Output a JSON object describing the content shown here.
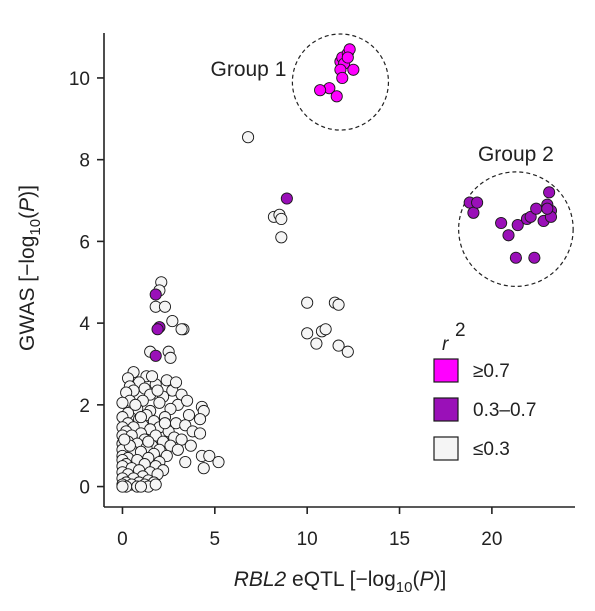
{
  "chart_data": {
    "type": "scatter",
    "title": "",
    "xlabel": {
      "italic": "RBL2",
      "rest": " eQTL [−log",
      "sub": "10",
      "tail": "(P)]"
    },
    "ylabel": {
      "main": "GWAS  [−log",
      "sub": "10",
      "tail": "(P)]"
    },
    "xlim": [
      -1,
      24.5
    ],
    "ylim": [
      -0.5,
      11.1
    ],
    "xticks": [
      0,
      5,
      10,
      15,
      20
    ],
    "xtick_labels": [
      "0",
      "5",
      "10",
      "15",
      "20"
    ],
    "yticks": [
      0,
      2,
      4,
      6,
      8,
      10
    ],
    "ytick_labels": [
      "0",
      "2",
      "4",
      "6",
      "8",
      "10"
    ],
    "grid": false,
    "legend": {
      "placement": "lower-right",
      "title": "r",
      "title_sup": "2",
      "entries": [
        {
          "label": "≥0.7",
          "color": "#ff00ff"
        },
        {
          "label": "0.3–0.7",
          "color": "#9a10b8"
        },
        {
          "label": "≤0.3",
          "color": "#f5f5f5"
        }
      ]
    },
    "annotations": [
      {
        "label": "Group 1",
        "center": [
          11.8,
          9.9
        ],
        "radius_x_units": 2.6
      },
      {
        "label": "Group 2",
        "center": [
          21.3,
          6.3
        ],
        "radius_x_units": 3.1
      }
    ],
    "series": [
      {
        "name": "≥0.7",
        "color": "#ff00ff",
        "points": [
          [
            11.8,
            10.4
          ],
          [
            11.9,
            10.5
          ],
          [
            12.0,
            10.35
          ],
          [
            12.2,
            10.6
          ],
          [
            12.3,
            10.7
          ],
          [
            11.8,
            10.2
          ],
          [
            12.5,
            10.2
          ],
          [
            11.9,
            10.0
          ],
          [
            11.2,
            9.75
          ],
          [
            10.7,
            9.7
          ],
          [
            11.6,
            9.55
          ],
          [
            12.2,
            10.5
          ]
        ]
      },
      {
        "name": "0.3–0.7",
        "color": "#9a10b8",
        "points": [
          [
            8.9,
            7.05
          ],
          [
            1.8,
            4.7
          ],
          [
            2.0,
            3.9
          ],
          [
            1.9,
            3.85
          ],
          [
            1.8,
            3.2
          ],
          [
            18.8,
            6.95
          ],
          [
            19.0,
            6.7
          ],
          [
            19.2,
            6.95
          ],
          [
            20.5,
            6.45
          ],
          [
            20.9,
            6.15
          ],
          [
            21.4,
            6.4
          ],
          [
            21.9,
            6.55
          ],
          [
            22.1,
            6.6
          ],
          [
            22.4,
            6.8
          ],
          [
            22.8,
            6.5
          ],
          [
            23.0,
            6.9
          ],
          [
            23.1,
            7.2
          ],
          [
            23.2,
            6.75
          ],
          [
            23.2,
            6.6
          ],
          [
            23.0,
            6.8
          ],
          [
            21.3,
            5.6
          ],
          [
            22.3,
            5.6
          ]
        ]
      },
      {
        "name": "≤0.3",
        "color": "#f5f5f5",
        "points": [
          [
            6.8,
            8.55
          ],
          [
            8.2,
            6.6
          ],
          [
            8.5,
            6.65
          ],
          [
            8.6,
            6.55
          ],
          [
            8.6,
            6.1
          ],
          [
            10.0,
            4.5
          ],
          [
            10.0,
            3.75
          ],
          [
            10.5,
            3.5
          ],
          [
            10.8,
            3.8
          ],
          [
            11.0,
            3.85
          ],
          [
            11.5,
            4.5
          ],
          [
            11.7,
            4.45
          ],
          [
            11.7,
            3.45
          ],
          [
            12.2,
            3.3
          ],
          [
            2.1,
            5.0
          ],
          [
            2.0,
            4.8
          ],
          [
            1.8,
            4.4
          ],
          [
            2.3,
            4.4
          ],
          [
            2.7,
            4.05
          ],
          [
            3.3,
            3.85
          ],
          [
            3.2,
            3.85
          ],
          [
            1.5,
            3.3
          ],
          [
            2.5,
            3.3
          ],
          [
            2.6,
            3.15
          ],
          [
            0.6,
            2.8
          ],
          [
            1.3,
            2.7
          ],
          [
            0.3,
            2.65
          ],
          [
            2.4,
            2.6
          ],
          [
            0.9,
            2.55
          ],
          [
            0.4,
            2.45
          ],
          [
            1.2,
            2.4
          ],
          [
            1.8,
            2.5
          ],
          [
            2.7,
            2.35
          ],
          [
            0.6,
            2.35
          ],
          [
            1.5,
            2.25
          ],
          [
            0.2,
            2.3
          ],
          [
            3.2,
            2.25
          ],
          [
            2.2,
            2.2
          ],
          [
            0.4,
            2.1
          ],
          [
            1.1,
            2.1
          ],
          [
            2.0,
            2.05
          ],
          [
            0.0,
            2.05
          ],
          [
            3.0,
            2.0
          ],
          [
            4.3,
            1.95
          ],
          [
            4.4,
            1.85
          ],
          [
            0.8,
            1.9
          ],
          [
            2.6,
            1.9
          ],
          [
            1.5,
            1.85
          ],
          [
            0.3,
            1.8
          ],
          [
            3.6,
            1.75
          ],
          [
            1.3,
            1.75
          ],
          [
            0.0,
            1.7
          ],
          [
            2.3,
            1.7
          ],
          [
            0.9,
            1.65
          ],
          [
            1.7,
            1.6
          ],
          [
            4.2,
            1.65
          ],
          [
            0.3,
            1.55
          ],
          [
            2.9,
            1.55
          ],
          [
            1.1,
            1.5
          ],
          [
            3.4,
            1.5
          ],
          [
            0.0,
            1.45
          ],
          [
            0.6,
            1.45
          ],
          [
            2.0,
            1.45
          ],
          [
            1.5,
            1.4
          ],
          [
            2.5,
            1.35
          ],
          [
            0.2,
            1.35
          ],
          [
            3.8,
            1.35
          ],
          [
            1.0,
            1.3
          ],
          [
            4.2,
            1.3
          ],
          [
            0.0,
            1.25
          ],
          [
            0.5,
            1.25
          ],
          [
            1.8,
            1.25
          ],
          [
            2.8,
            1.2
          ],
          [
            1.2,
            1.15
          ],
          [
            3.2,
            1.15
          ],
          [
            0.3,
            1.1
          ],
          [
            2.2,
            1.1
          ],
          [
            0.0,
            1.05
          ],
          [
            0.8,
            1.05
          ],
          [
            1.6,
            1.0
          ],
          [
            2.6,
            1.0
          ],
          [
            3.7,
            1.0
          ],
          [
            0.2,
            0.95
          ],
          [
            1.3,
            0.95
          ],
          [
            0.0,
            0.9
          ],
          [
            2.0,
            0.9
          ],
          [
            3.0,
            0.9
          ],
          [
            0.6,
            0.85
          ],
          [
            1.0,
            0.85
          ],
          [
            1.7,
            0.8
          ],
          [
            0.0,
            0.75
          ],
          [
            2.4,
            0.75
          ],
          [
            0.3,
            0.7
          ],
          [
            1.4,
            0.7
          ],
          [
            4.3,
            0.75
          ],
          [
            4.7,
            0.75
          ],
          [
            0.0,
            0.65
          ],
          [
            0.8,
            0.65
          ],
          [
            2.0,
            0.6
          ],
          [
            3.4,
            0.6
          ],
          [
            5.2,
            0.6
          ],
          [
            0.2,
            0.55
          ],
          [
            1.2,
            0.55
          ],
          [
            0.0,
            0.5
          ],
          [
            1.8,
            0.5
          ],
          [
            4.4,
            0.45
          ],
          [
            0.5,
            0.45
          ],
          [
            0.9,
            0.4
          ],
          [
            2.2,
            0.4
          ],
          [
            0.0,
            0.35
          ],
          [
            1.5,
            0.35
          ],
          [
            0.3,
            0.3
          ],
          [
            1.1,
            0.25
          ],
          [
            1.9,
            0.3
          ],
          [
            0.0,
            0.2
          ],
          [
            0.6,
            0.2
          ],
          [
            1.4,
            0.15
          ],
          [
            0.2,
            0.1
          ],
          [
            0.9,
            0.1
          ],
          [
            1.7,
            0.1
          ],
          [
            0.0,
            0.05
          ],
          [
            0.5,
            0.05
          ],
          [
            1.2,
            0.05
          ],
          [
            0.2,
            0.0
          ],
          [
            0.8,
            0.0
          ],
          [
            1.4,
            0.0
          ],
          [
            1.8,
            0.05
          ],
          [
            0.0,
            0.0
          ],
          [
            1.0,
            0.0
          ],
          [
            0.4,
            1.0
          ],
          [
            1.4,
            1.1
          ],
          [
            2.9,
            2.55
          ],
          [
            0.7,
            2.0
          ],
          [
            1.9,
            2.35
          ],
          [
            2.3,
            1.55
          ],
          [
            3.5,
            2.1
          ],
          [
            0.1,
            1.15
          ],
          [
            1.0,
            1.7
          ],
          [
            1.6,
            2.7
          ]
        ]
      }
    ]
  }
}
